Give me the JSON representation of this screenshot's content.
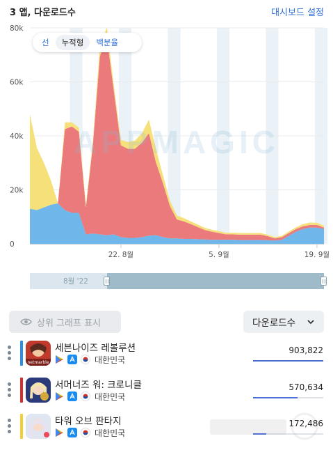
{
  "header": {
    "title": "3 앱, 다운로드수",
    "dashboard_link": "대시보드 설정"
  },
  "toggle": {
    "options": [
      "선",
      "누적형",
      "백분율"
    ],
    "active": 1
  },
  "watermark": "APPMAGIC",
  "navigator": {
    "label": "8월 '22"
  },
  "controls": {
    "show_top_label": "상위 그래프 표시",
    "metric_label": "다운로드수"
  },
  "chart_data": {
    "type": "area",
    "stacked": true,
    "ylim": [
      0,
      80000
    ],
    "yticks": [
      "0",
      "20k",
      "40k",
      "60k",
      "80k"
    ],
    "ytick_values": [
      0,
      20000,
      40000,
      60000,
      80000
    ],
    "xticks": [
      "22. 8월",
      "5. 9월",
      "19. 9월"
    ],
    "xtick_index": [
      13,
      27,
      41
    ],
    "x_count": 43,
    "grid": true,
    "series": [
      {
        "color": "#6fb6ea",
        "values": [
          13000,
          12500,
          13500,
          14500,
          15000,
          12500,
          11500,
          11500,
          3500,
          3800,
          3500,
          3200,
          3500,
          2500,
          2200,
          2200,
          2500,
          3000,
          3200,
          2500,
          2000,
          2000,
          1800,
          1800,
          1700,
          1600,
          1500,
          1500,
          1500,
          1500,
          1400,
          1400,
          1400,
          1400,
          1300,
          1200,
          1500,
          3000,
          4500,
          5500,
          6000,
          6000,
          5500
        ]
      },
      {
        "color": "#ea7a7c",
        "values": [
          0,
          0,
          0,
          0,
          0,
          30000,
          32000,
          30000,
          10000,
          33000,
          66000,
          73000,
          53000,
          34000,
          33000,
          33000,
          35000,
          38000,
          27000,
          20000,
          12000,
          7000,
          6500,
          5500,
          4500,
          3500,
          3000,
          2500,
          2000,
          2000,
          2000,
          2000,
          2000,
          2000,
          1500,
          800,
          1000,
          1000,
          1000,
          1000,
          1000,
          1000,
          500
        ]
      },
      {
        "color": "#f6e07a",
        "values": [
          35000,
          23000,
          16500,
          9000,
          0,
          2500,
          1500,
          1500,
          1000,
          1500,
          4000,
          4000,
          2000,
          2000,
          2500,
          3000,
          3500,
          5000,
          5000,
          3000,
          2000,
          1500,
          1200,
          1000,
          900,
          800,
          700,
          700,
          600,
          600,
          600,
          600,
          600,
          600,
          500,
          500,
          500,
          600,
          600,
          800,
          900,
          800,
          700
        ]
      }
    ]
  },
  "apps": [
    {
      "name": "세븐나이즈 레볼루션",
      "country": "대한민국",
      "value": "903,822",
      "value_num": 903822,
      "color": "#2d8fe3",
      "icon": "seven-knights-icon"
    },
    {
      "name": "서머너즈 워: 크로니클",
      "country": "대한민국",
      "value": "570,634",
      "value_num": 570634,
      "color": "#d32f2f",
      "icon": "summoners-war-icon"
    },
    {
      "name": "타워 오브 판타지",
      "country": "대한민국",
      "value": "172,486",
      "value_num": 172486,
      "color": "#f2d035",
      "icon": "tower-of-fantasy-icon"
    }
  ]
}
